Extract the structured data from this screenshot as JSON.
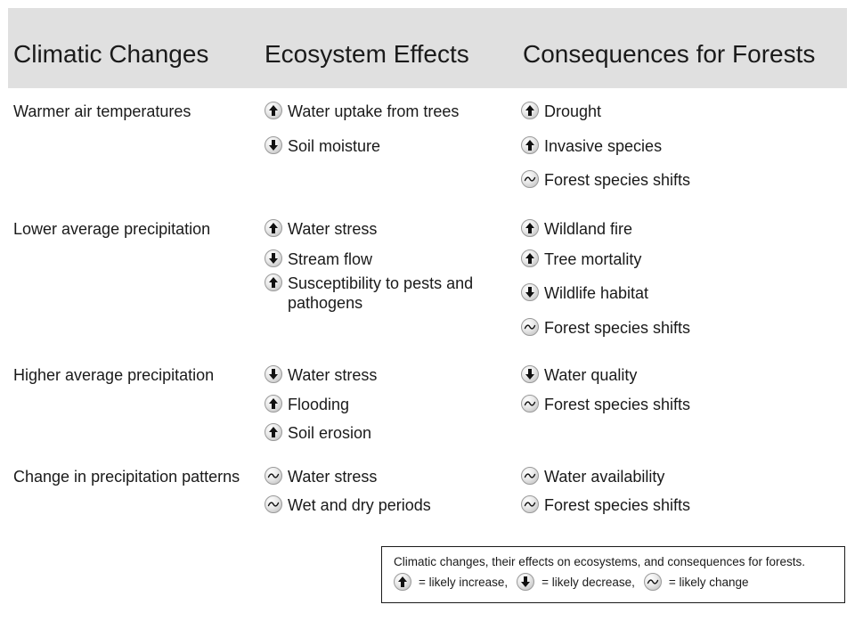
{
  "header": {
    "col1": "Climatic Changes",
    "col2": "Ecosystem Effects",
    "col3": "Consequences for Forests"
  },
  "rows": [
    {
      "change": "Warmer air temperatures",
      "effects": [
        {
          "dir": "up",
          "text": "Water uptake from trees"
        },
        {
          "dir": "down",
          "text": "Soil moisture"
        }
      ],
      "consequences": [
        {
          "dir": "up",
          "text": "Drought"
        },
        {
          "dir": "up",
          "text": "Invasive species"
        },
        {
          "dir": "change",
          "text": "Forest species shifts"
        }
      ]
    },
    {
      "change": "Lower average precipitation",
      "effects": [
        {
          "dir": "up",
          "text": "Water stress"
        },
        {
          "dir": "down",
          "text": "Stream flow"
        },
        {
          "dir": "up",
          "text": "Susceptibility to pests and pathogens"
        }
      ],
      "consequences": [
        {
          "dir": "up",
          "text": "Wildland fire"
        },
        {
          "dir": "up",
          "text": "Tree mortality"
        },
        {
          "dir": "down",
          "text": "Wildlife habitat"
        },
        {
          "dir": "change",
          "text": "Forest species shifts"
        }
      ]
    },
    {
      "change": "Higher average precipitation",
      "effects": [
        {
          "dir": "down",
          "text": "Water stress"
        },
        {
          "dir": "up",
          "text": "Flooding"
        },
        {
          "dir": "up",
          "text": "Soil erosion"
        }
      ],
      "consequences": [
        {
          "dir": "down",
          "text": "Water quality"
        },
        {
          "dir": "change",
          "text": "Forest species shifts"
        }
      ]
    },
    {
      "change": "Change in precipitation patterns",
      "effects": [
        {
          "dir": "change",
          "text": "Water stress"
        },
        {
          "dir": "change",
          "text": "Wet and dry periods"
        }
      ],
      "consequences": [
        {
          "dir": "change",
          "text": "Water availability"
        },
        {
          "dir": "change",
          "text": "Forest species shifts"
        }
      ]
    }
  ],
  "legend": {
    "caption": "Climatic changes, their effects on ecosystems, and consequences for forests.",
    "increase": "= likely increase,",
    "decrease": "= likely decrease,",
    "change": "= likely change"
  }
}
